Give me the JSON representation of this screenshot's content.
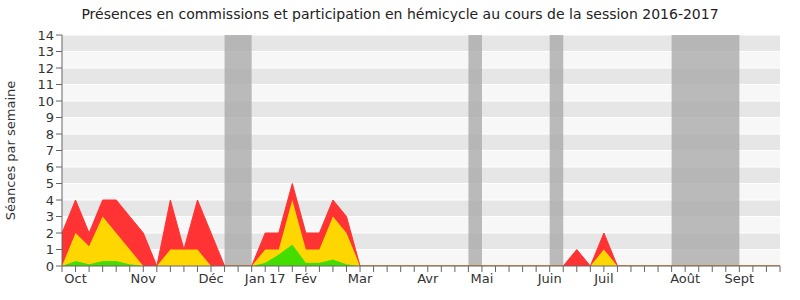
{
  "chart_data": {
    "type": "area",
    "title": "Présences en commissions et participation en hémicycle au cours de la session 2016-2017",
    "y_label": "Séances par semaine",
    "stacked": true,
    "grid": true,
    "categories": [
      null,
      "Oct",
      null,
      null,
      null,
      null,
      "Nov",
      null,
      null,
      null,
      null,
      "Déc",
      null,
      null,
      null,
      "Jan 17",
      null,
      null,
      "Fév",
      null,
      null,
      null,
      "Mar",
      null,
      null,
      null,
      null,
      "Avr",
      null,
      null,
      null,
      "Mai",
      null,
      null,
      null,
      null,
      "Juin",
      null,
      null,
      null,
      "Juil",
      null,
      null,
      null,
      null,
      null,
      "Août",
      null,
      null,
      null,
      "Sept",
      null,
      null,
      null
    ],
    "series": [
      {
        "color": "#44dd00",
        "values": [
          0,
          0.3,
          0.1,
          0.3,
          0.3,
          0.1,
          0,
          0,
          0,
          0,
          0,
          0,
          0,
          0,
          0,
          0.2,
          0.7,
          1.3,
          0.2,
          0.2,
          0.4,
          0.1,
          0,
          0,
          0,
          0,
          0,
          0,
          0,
          0,
          0,
          0,
          0,
          0,
          0,
          0,
          0,
          0,
          0,
          0,
          0,
          0,
          0,
          0,
          0,
          0,
          0,
          0,
          0,
          0,
          0,
          0,
          0,
          0
        ]
      },
      {
        "color": "#ffd700",
        "values": [
          0,
          1.7,
          1.1,
          2.7,
          1.7,
          0.9,
          0,
          0,
          1,
          1,
          1,
          0,
          0,
          0,
          0,
          0.8,
          0.3,
          2.7,
          0.8,
          0.8,
          2.6,
          1.9,
          0,
          0,
          0,
          0,
          0,
          0,
          0,
          0,
          0,
          0,
          0,
          0,
          0,
          0,
          0,
          0,
          0,
          0,
          1,
          0,
          0,
          0,
          0,
          0,
          0,
          0,
          0,
          0,
          0,
          0,
          0,
          0
        ]
      },
      {
        "color": "#ff3333",
        "values": [
          2,
          2,
          0.8,
          1,
          2,
          2,
          2,
          0,
          3,
          0,
          3,
          2,
          0,
          0,
          0,
          1,
          1,
          1,
          1,
          1,
          1,
          1,
          0,
          0,
          0,
          0,
          0,
          0,
          0,
          0,
          0,
          0,
          0,
          0,
          0,
          0,
          0,
          0,
          1,
          0,
          1,
          0,
          0,
          0,
          0,
          0,
          0,
          0,
          0,
          0,
          0,
          0,
          0,
          0
        ]
      }
    ],
    "shaded_weeks": [
      [
        12,
        14
      ],
      [
        30,
        31
      ],
      [
        36,
        37
      ],
      [
        45,
        50
      ]
    ],
    "ylim": [
      0,
      14
    ],
    "yticks": [
      0,
      1,
      2,
      3,
      4,
      5,
      6,
      7,
      8,
      9,
      10,
      11,
      12,
      13,
      14
    ]
  }
}
